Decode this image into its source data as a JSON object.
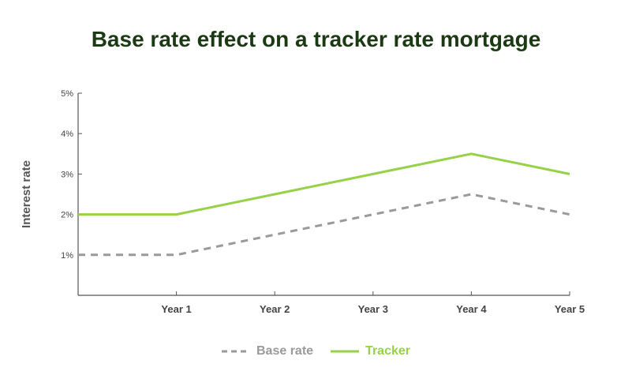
{
  "chart_data": {
    "type": "line",
    "title": "Base rate effect on a tracker rate mortgage",
    "ylabel": "Interest rate",
    "xlabel": "",
    "categories": [
      "Year 1",
      "Year 2",
      "Year 3",
      "Year 4",
      "Year 5"
    ],
    "x": [
      0,
      1,
      2,
      3,
      4,
      5
    ],
    "y_ticks": [
      "1%",
      "2%",
      "3%",
      "4%",
      "5%"
    ],
    "ylim": [
      0,
      5
    ],
    "grid": false,
    "legend_position": "bottom-center",
    "series": [
      {
        "name": "Base rate",
        "style": "dashed",
        "color": "#9a9a9a",
        "values": [
          1.0,
          1.0,
          1.5,
          2.0,
          2.5,
          2.0
        ]
      },
      {
        "name": "Tracker",
        "style": "solid",
        "color": "#96d148",
        "values": [
          2.0,
          2.0,
          2.5,
          3.0,
          3.5,
          3.0
        ]
      }
    ]
  },
  "colors": {
    "title": "#1b3a14",
    "axis": "#555555",
    "base_rate": "#9a9a9a",
    "tracker": "#96d148"
  }
}
